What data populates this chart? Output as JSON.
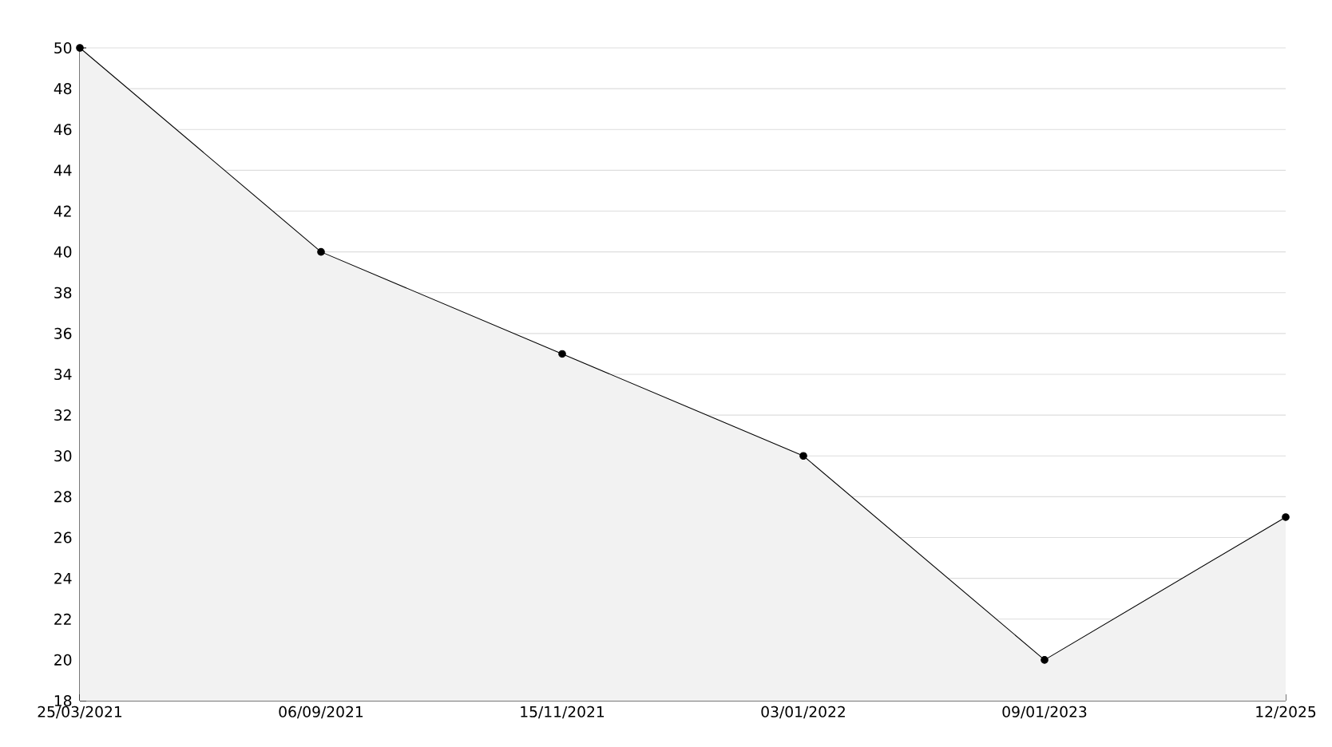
{
  "chart_data": {
    "type": "area",
    "categories": [
      "25/03/2021",
      "06/09/2021",
      "15/11/2021",
      "03/01/2022",
      "09/01/2023",
      "12/2025"
    ],
    "series": [
      {
        "color": "#000000",
        "values": [
          50,
          40,
          35,
          30,
          20,
          27
        ]
      }
    ],
    "ylim": [
      18,
      50
    ],
    "yticks": [
      18,
      20,
      22,
      24,
      26,
      28,
      30,
      32,
      34,
      36,
      38,
      40,
      42,
      44,
      46,
      48,
      50
    ],
    "grid": "y",
    "marker": "circle",
    "line_style": "solid"
  }
}
